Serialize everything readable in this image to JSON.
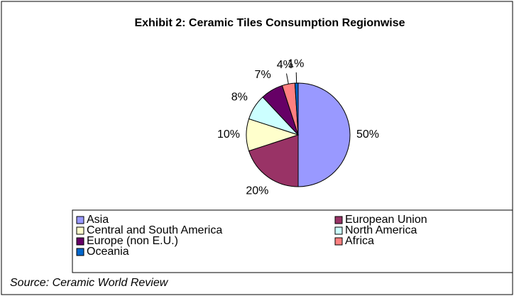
{
  "chart_data": {
    "type": "pie",
    "title": "Exhibit 2: Ceramic Tiles Consumption Regionwise",
    "categories": [
      "Asia",
      "European Union",
      "Central and South America",
      "North America",
      "Europe (non E.U.)",
      "Africa",
      "Oceania"
    ],
    "values": [
      50,
      20,
      10,
      8,
      7,
      4,
      1
    ],
    "value_labels": [
      "50%",
      "20%",
      "10%",
      "8%",
      "7%",
      "4%",
      "1%"
    ],
    "colors": [
      "#9999ff",
      "#993366",
      "#ffffcc",
      "#ccffff",
      "#660066",
      "#ff8080",
      "#0066cc"
    ],
    "legend": "bottom",
    "source": "Source: Ceramic World Review"
  }
}
